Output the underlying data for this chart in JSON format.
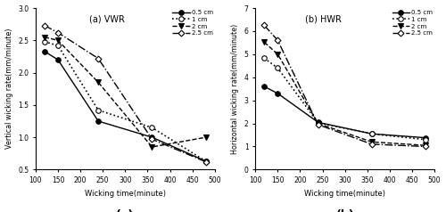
{
  "a_title": "(a) VWR",
  "b_title": "(b) HWR",
  "xlabel": "Wicking time(minute)",
  "a_ylabel": "Vertical wicking rate(mm/minute)",
  "b_ylabel": "Horizontal wicking rate(mm/minute)",
  "a_label": "(a)",
  "b_label": "(b)",
  "x": [
    120,
    150,
    240,
    360,
    480
  ],
  "a_data": {
    "0.5cm": [
      2.33,
      2.2,
      1.25,
      1.0,
      0.63
    ],
    "1cm": [
      2.48,
      2.42,
      1.42,
      1.15,
      0.63
    ],
    "2cm": [
      2.55,
      2.5,
      1.85,
      0.85,
      1.0
    ],
    "2.5cm": [
      2.73,
      2.62,
      2.22,
      0.97,
      0.62
    ]
  },
  "b_data": {
    "0.5cm": [
      3.6,
      3.3,
      2.05,
      1.55,
      1.38
    ],
    "1cm": [
      4.83,
      4.4,
      2.03,
      1.55,
      1.3
    ],
    "2cm": [
      5.52,
      5.0,
      2.0,
      1.2,
      1.05
    ],
    "2.5cm": [
      6.25,
      5.6,
      1.95,
      1.1,
      1.0
    ]
  },
  "a_ylim": [
    0.5,
    3.0
  ],
  "a_yticks": [
    0.5,
    1.0,
    1.5,
    2.0,
    2.5,
    3.0
  ],
  "b_ylim": [
    0,
    7
  ],
  "b_yticks": [
    0,
    1,
    2,
    3,
    4,
    5,
    6,
    7
  ],
  "xlim": [
    100,
    500
  ],
  "xticks": [
    100,
    150,
    200,
    250,
    300,
    350,
    400,
    450,
    500
  ],
  "legend_labels": [
    "0.5 cm",
    "1 cm",
    "2 cm",
    "2.5 cm"
  ],
  "line_styles": [
    {
      "linestyle": "-",
      "marker": "o",
      "markerfacecolor": "black",
      "markersize": 4,
      "color": "black",
      "linewidth": 1.0
    },
    {
      "linestyle": ":",
      "marker": "o",
      "markerfacecolor": "white",
      "markersize": 4,
      "color": "black",
      "linewidth": 1.2
    },
    {
      "linestyle": "--",
      "marker": "v",
      "markerfacecolor": "black",
      "markersize": 4,
      "color": "black",
      "linewidth": 1.0
    },
    {
      "linestyle": "-.",
      "marker": "D",
      "markerfacecolor": "white",
      "markersize": 3.5,
      "color": "black",
      "linewidth": 1.0
    }
  ]
}
